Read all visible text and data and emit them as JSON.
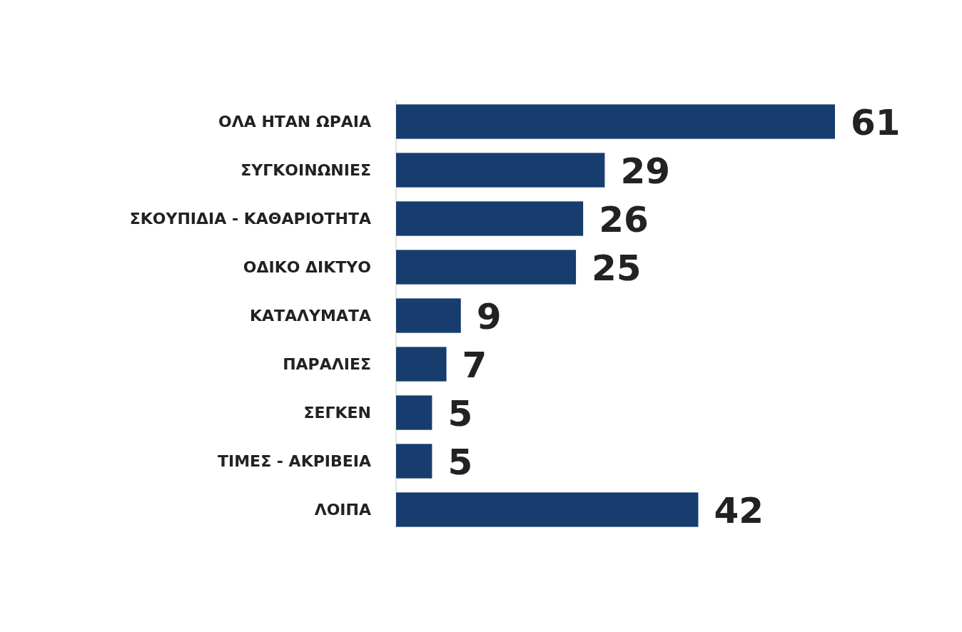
{
  "chart_data": {
    "type": "bar",
    "orientation": "horizontal",
    "data_labels": true,
    "categories": [
      "ΟΛΑ ΗΤΑΝ ΩΡΑΙΑ",
      "ΣΥΓΚΟΙΝΩΝΙΕΣ",
      "ΣΚΟΥΠΙΔΙΑ - ΚΑΘΑΡΙΟΤΗΤΑ",
      "ΟΔΙΚΟ ΔΙΚΤΥΟ",
      "ΚΑΤΑΛΥΜΑΤΑ",
      "ΠΑΡΑΛΙΕΣ",
      "ΣΕΓΚΕΝ",
      "ΤΙΜΕΣ - ΑΚΡΙΒΕΙΑ",
      "ΛΟΙΠΑ"
    ],
    "values": [
      61,
      29,
      26,
      25,
      9,
      7,
      5,
      5,
      42
    ],
    "color": "#173d6e"
  }
}
